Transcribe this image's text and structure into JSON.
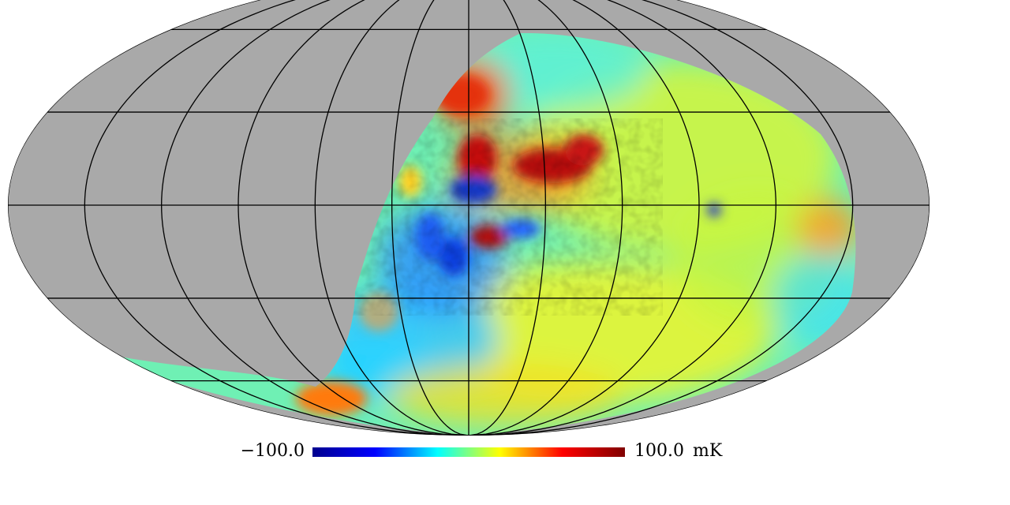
{
  "map": {
    "projection": "mollweide",
    "masked_color": "#a9a9a9",
    "graticule_color": "#000000",
    "graticule_meridian_step_deg": 30,
    "graticule_parallel_step_deg": 30
  },
  "colorbar": {
    "min_label": "−100.0",
    "max_label": "100.0",
    "unit_label": "mK",
    "min_value": -100.0,
    "max_value": 100.0,
    "colormap": "jet",
    "colors": [
      "#00008f",
      "#0000ff",
      "#00ffff",
      "#ffff00",
      "#ff0000",
      "#800000"
    ]
  }
}
